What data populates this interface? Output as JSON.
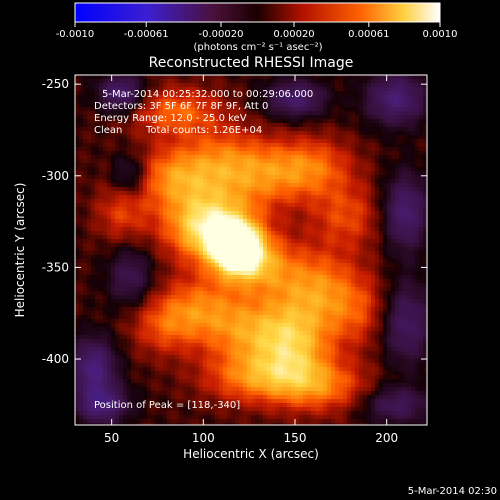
{
  "colorbar": {
    "tick_labels": [
      "-0.0010",
      "-0.00061",
      "-0.00020",
      "0.00020",
      "0.00061",
      "0.0010"
    ],
    "tick_values": [
      -0.001,
      -0.00061,
      -0.0002,
      0.0002,
      0.00061,
      0.001
    ],
    "range": [
      -0.001,
      0.001
    ],
    "units_label": "(photons cm⁻² s⁻¹ asec⁻²)"
  },
  "chart_data": {
    "type": "heatmap",
    "title": "Reconstructed RHESSI Image",
    "xlabel": "Heliocentric X (arcsec)",
    "ylabel": "Heliocentric Y (arcsec)",
    "xlim": [
      30,
      222
    ],
    "ylim": [
      -436,
      -245
    ],
    "x_ticks": [
      "50",
      "100",
      "150",
      "200"
    ],
    "y_ticks": [
      "-250",
      "-300",
      "-350",
      "-400"
    ],
    "x_tick_values": [
      50,
      100,
      150,
      200
    ],
    "y_tick_values": [
      -250,
      -300,
      -350,
      -400
    ],
    "peak_position": [
      118,
      -340
    ],
    "annotations": {
      "time_range": "5-Mar-2014 00:25:32.000 to 00:29:06.000",
      "detectors": "Detectors: 3F 5F 6F 7F 8F 9F, Att 0",
      "energy_range": "Energy Range: 12.0 - 25.0 keV",
      "algorithm": "Clean",
      "total_counts": "Total counts: 1.26E+04",
      "peak_label": "Position of Peak = [118,-340]"
    },
    "colormap": "rhessi-red-temperature"
  },
  "footer": {
    "timestamp": "5-Mar-2014 02:30"
  }
}
